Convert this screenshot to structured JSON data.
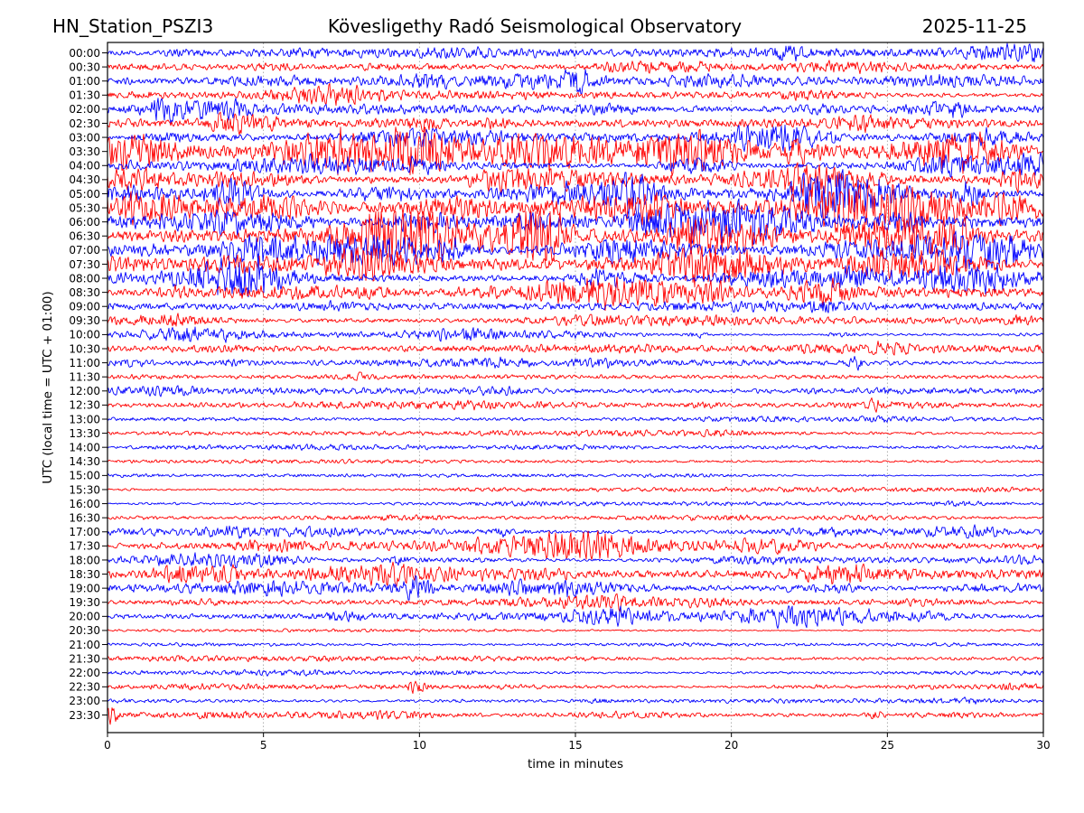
{
  "chart_data": {
    "type": "line",
    "subtype": "helicorder-dayplot",
    "station": "HN_Station_PSZI3",
    "title": "Kövesligethy Radó Seismological Observatory",
    "date": "2025-11-25",
    "xlabel": "time in minutes",
    "ylabel": "UTC (local time = UTC + 01:00)",
    "xlim": [
      0,
      30
    ],
    "x_ticks": [
      0,
      5,
      10,
      15,
      20,
      25,
      30
    ],
    "grid": {
      "vertical_dotted_minutes": [
        5,
        10,
        15,
        20,
        25
      ],
      "color": "#999999",
      "horizontal": false
    },
    "legend": null,
    "palette": {
      "blue": "#0000ff",
      "red": "#ff0000",
      "frame": "#000000"
    },
    "rows_per_day": 48,
    "minutes_per_row": 30,
    "rows": [
      {
        "t": "00:00",
        "c": "blue",
        "amp": 5.5,
        "burst": 1.4,
        "seed": 18
      },
      {
        "t": "00:30",
        "c": "red",
        "amp": 4.5,
        "burst": 1.2,
        "seed": 31
      },
      {
        "t": "01:00",
        "c": "blue",
        "amp": 5.5,
        "burst": 1.8,
        "seed": 44,
        "events": [
          {
            "p": 0.5,
            "h": 2.6,
            "w": 18
          }
        ]
      },
      {
        "t": "01:30",
        "c": "red",
        "amp": 4.2,
        "burst": 1.0,
        "seed": 57
      },
      {
        "t": "02:00",
        "c": "blue",
        "amp": 5.5,
        "burst": 1.5,
        "seed": 70
      },
      {
        "t": "02:30",
        "c": "red",
        "amp": 5.0,
        "burst": 1.5,
        "seed": 83
      },
      {
        "t": "03:00",
        "c": "blue",
        "amp": 6.0,
        "burst": 1.8,
        "seed": 96
      },
      {
        "t": "03:30",
        "c": "red",
        "amp": 7.0,
        "burst": 2.2,
        "seed": 109,
        "events": [
          {
            "p": 0.03,
            "h": 2.2,
            "w": 50
          }
        ]
      },
      {
        "t": "04:00",
        "c": "blue",
        "amp": 6.0,
        "burst": 1.8,
        "seed": 122
      },
      {
        "t": "04:30",
        "c": "red",
        "amp": 6.5,
        "burst": 2.0,
        "seed": 135
      },
      {
        "t": "05:00",
        "c": "blue",
        "amp": 6.0,
        "burst": 2.2,
        "seed": 148,
        "events": [
          {
            "p": 0.56,
            "h": 2.6,
            "w": 16
          },
          {
            "p": 0.76,
            "h": 3.0,
            "w": 20
          },
          {
            "p": 0.92,
            "h": 2.4,
            "w": 14
          }
        ]
      },
      {
        "t": "05:30",
        "c": "red",
        "amp": 8.0,
        "burst": 2.4,
        "seed": 161
      },
      {
        "t": "06:00",
        "c": "blue",
        "amp": 8.0,
        "burst": 2.4,
        "seed": 174
      },
      {
        "t": "06:30",
        "c": "red",
        "amp": 9.0,
        "burst": 2.8,
        "seed": 187
      },
      {
        "t": "07:00",
        "c": "blue",
        "amp": 7.0,
        "burst": 2.0,
        "seed": 200
      },
      {
        "t": "07:30",
        "c": "red",
        "amp": 8.0,
        "burst": 2.4,
        "seed": 213
      },
      {
        "t": "08:00",
        "c": "blue",
        "amp": 6.5,
        "burst": 2.0,
        "seed": 226
      },
      {
        "t": "08:30",
        "c": "red",
        "amp": 6.5,
        "burst": 2.0,
        "seed": 239
      },
      {
        "t": "09:00",
        "c": "blue",
        "amp": 4.0,
        "burst": 1.0,
        "seed": 252
      },
      {
        "t": "09:30",
        "c": "red",
        "amp": 3.5,
        "burst": 1.0,
        "seed": 265
      },
      {
        "t": "10:00",
        "c": "blue",
        "amp": 3.5,
        "burst": 1.3,
        "seed": 278,
        "events": [
          {
            "p": 0.63,
            "h": 3.6,
            "w": 8
          }
        ]
      },
      {
        "t": "10:30",
        "c": "red",
        "amp": 3.5,
        "burst": 1.0,
        "seed": 291
      },
      {
        "t": "11:00",
        "c": "blue",
        "amp": 3.5,
        "burst": 1.2,
        "seed": 304,
        "events": [
          {
            "p": 0.8,
            "h": 2.6,
            "w": 8
          }
        ]
      },
      {
        "t": "11:30",
        "c": "red",
        "amp": 3.5,
        "burst": 1.0,
        "seed": 317
      },
      {
        "t": "12:00",
        "c": "blue",
        "amp": 3.0,
        "burst": 0.8,
        "seed": 330
      },
      {
        "t": "12:30",
        "c": "red",
        "amp": 3.0,
        "burst": 0.8,
        "seed": 343,
        "events": [
          {
            "p": 0.82,
            "h": 2.2,
            "w": 10
          }
        ]
      },
      {
        "t": "13:00",
        "c": "blue",
        "amp": 2.2,
        "burst": 0.5,
        "seed": 356
      },
      {
        "t": "13:30",
        "c": "red",
        "amp": 2.0,
        "burst": 0.5,
        "seed": 369
      },
      {
        "t": "14:00",
        "c": "blue",
        "amp": 2.2,
        "burst": 0.5,
        "seed": 382
      },
      {
        "t": "14:30",
        "c": "red",
        "amp": 1.8,
        "burst": 0.4,
        "seed": 395
      },
      {
        "t": "15:00",
        "c": "blue",
        "amp": 2.2,
        "burst": 0.5,
        "seed": 408
      },
      {
        "t": "15:30",
        "c": "red",
        "amp": 2.5,
        "burst": 0.6,
        "seed": 421
      },
      {
        "t": "16:00",
        "c": "blue",
        "amp": 2.5,
        "burst": 0.7,
        "seed": 434
      },
      {
        "t": "16:30",
        "c": "red",
        "amp": 3.0,
        "burst": 0.8,
        "seed": 447
      },
      {
        "t": "17:00",
        "c": "blue",
        "amp": 4.2,
        "burst": 1.2,
        "seed": 460,
        "events": [
          {
            "p": 0.42,
            "h": 2.2,
            "w": 10
          }
        ]
      },
      {
        "t": "17:30",
        "c": "red",
        "amp": 4.6,
        "burst": 1.4,
        "seed": 473
      },
      {
        "t": "18:00",
        "c": "blue",
        "amp": 4.6,
        "burst": 1.4,
        "seed": 486,
        "events": [
          {
            "p": 0.31,
            "h": 2.4,
            "w": 10
          }
        ]
      },
      {
        "t": "18:30",
        "c": "red",
        "amp": 5.0,
        "burst": 1.5,
        "seed": 499
      },
      {
        "t": "19:00",
        "c": "blue",
        "amp": 5.0,
        "burst": 1.5,
        "seed": 512,
        "events": [
          {
            "p": 0.33,
            "h": 2.2,
            "w": 14
          }
        ]
      },
      {
        "t": "19:30",
        "c": "red",
        "amp": 4.2,
        "burst": 1.2,
        "seed": 525
      },
      {
        "t": "20:00",
        "c": "blue",
        "amp": 4.5,
        "burst": 1.2,
        "seed": 538
      },
      {
        "t": "20:30",
        "c": "red",
        "amp": 2.0,
        "burst": 0.4,
        "seed": 551
      },
      {
        "t": "21:00",
        "c": "blue",
        "amp": 2.0,
        "burst": 0.5,
        "seed": 564
      },
      {
        "t": "21:30",
        "c": "red",
        "amp": 2.2,
        "burst": 0.4,
        "seed": 577
      },
      {
        "t": "22:00",
        "c": "blue",
        "amp": 3.0,
        "burst": 0.8,
        "seed": 590
      },
      {
        "t": "22:30",
        "c": "red",
        "amp": 3.5,
        "burst": 1.0,
        "seed": 603,
        "events": [
          {
            "p": 0.33,
            "h": 2.0,
            "w": 10
          }
        ]
      },
      {
        "t": "23:00",
        "c": "blue",
        "amp": 3.5,
        "burst": 1.0,
        "seed": 616
      },
      {
        "t": "23:30",
        "c": "red",
        "amp": 2.5,
        "burst": 0.8,
        "seed": 629,
        "events": [
          {
            "p": 0.005,
            "h": 2.5,
            "w": 6
          },
          {
            "p": 0.82,
            "h": 2.0,
            "w": 8
          }
        ]
      }
    ]
  }
}
